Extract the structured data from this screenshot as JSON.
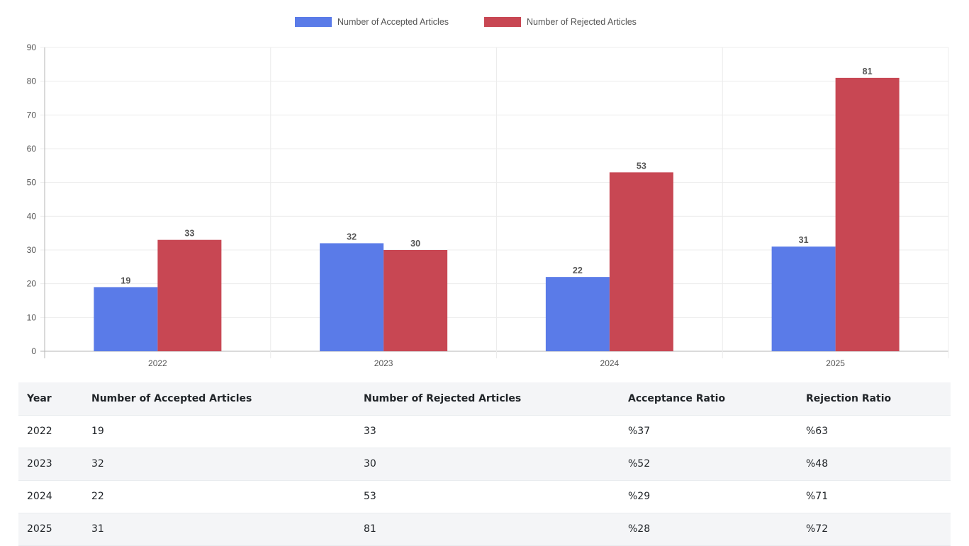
{
  "chart_data": {
    "type": "bar",
    "categories": [
      "2022",
      "2023",
      "2024",
      "2025"
    ],
    "series": [
      {
        "name": "Number of Accepted Articles",
        "color": "#5a7be8",
        "values": [
          19,
          32,
          22,
          31
        ]
      },
      {
        "name": "Number of Rejected Articles",
        "color": "#c84753",
        "values": [
          33,
          30,
          53,
          81
        ]
      }
    ],
    "title": "",
    "xlabel": "",
    "ylabel": "",
    "ylim": [
      0,
      90
    ],
    "yticks": [
      0,
      10,
      20,
      30,
      40,
      50,
      60,
      70,
      80,
      90
    ],
    "grid": true,
    "legend_position": "top-center",
    "data_labels": true
  },
  "table": {
    "headers": [
      "Year",
      "Number of Accepted Articles",
      "Number of Rejected Articles",
      "Acceptance Ratio",
      "Rejection Ratio"
    ],
    "rows": [
      [
        "2022",
        "19",
        "33",
        "%37",
        "%63"
      ],
      [
        "2023",
        "32",
        "30",
        "%52",
        "%48"
      ],
      [
        "2024",
        "22",
        "53",
        "%29",
        "%71"
      ],
      [
        "2025",
        "31",
        "81",
        "%28",
        "%72"
      ]
    ]
  }
}
